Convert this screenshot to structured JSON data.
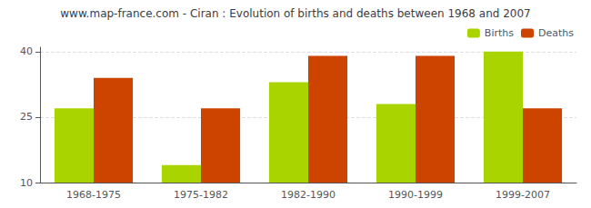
{
  "chart_data": {
    "type": "bar",
    "title": "www.map-france.com - Ciran : Evolution of births and deaths between 1968 and 2007",
    "categories": [
      "1968-1975",
      "1975-1982",
      "1982-1990",
      "1990-1999",
      "1999-2007"
    ],
    "series": [
      {
        "name": "Births",
        "color": "#aad400",
        "values": [
          27,
          14,
          33,
          28,
          40
        ]
      },
      {
        "name": "Deaths",
        "color": "#cc4400",
        "values": [
          34,
          27,
          39,
          39,
          27
        ]
      }
    ],
    "ylim": [
      10,
      41
    ],
    "yticks": [
      10,
      25,
      40
    ],
    "grid": true,
    "legend": "upper right"
  }
}
